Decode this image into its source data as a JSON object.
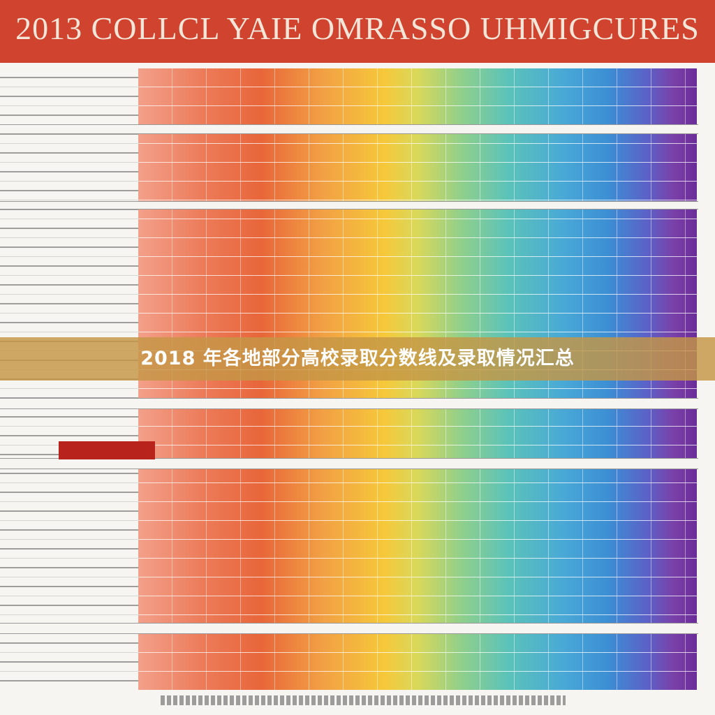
{
  "header": {
    "title": "2013 COLLCL YAIE OMRASSO UHMIGCURES"
  },
  "caption": {
    "text": "2018 年各地部分高校录取分数线及录取情况汇总"
  }
}
